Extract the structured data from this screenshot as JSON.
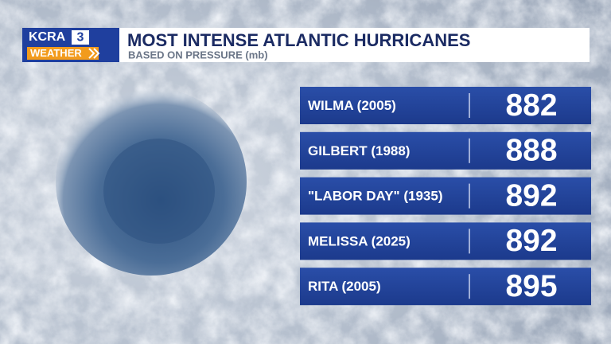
{
  "logo": {
    "station": "KCRA",
    "channel": "3",
    "brand": "WEATHER"
  },
  "header": {
    "title": "MOST INTENSE ATLANTIC HURRICANES",
    "subtitle": "BASED ON PRESSURE (mb)"
  },
  "table": {
    "rows": [
      [
        "WILMA (2005)",
        882
      ],
      [
        "GILBERT (1988)",
        888
      ],
      [
        "\"LABOR DAY\" (1935)",
        892
      ],
      [
        "MELISSA (2025)",
        892
      ],
      [
        "RITA (2005)",
        895
      ]
    ]
  }
}
